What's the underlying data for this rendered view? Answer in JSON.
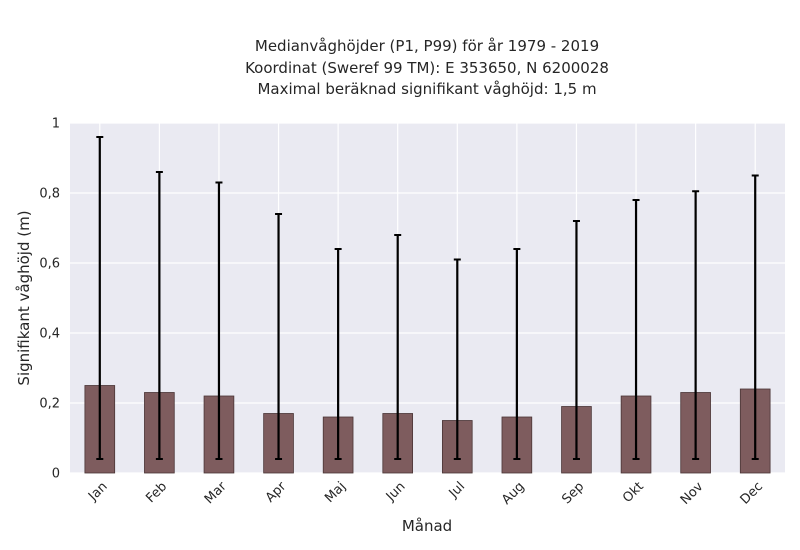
{
  "chart_data": {
    "type": "bar",
    "title_lines": [
      "Medianvåghöjder (P1, P99) för år 1979 - 2019",
      "Koordinat (Sweref 99 TM): E 353650, N 6200028",
      "Maximal beräknad signifikant våghöjd: 1,5 m"
    ],
    "xlabel": "Månad",
    "ylabel": "Signifikant våghöjd (m)",
    "categories": [
      "Jan",
      "Feb",
      "Mar",
      "Apr",
      "Maj",
      "Jun",
      "Jul",
      "Aug",
      "Sep",
      "Okt",
      "Nov",
      "Dec"
    ],
    "series": [
      {
        "values": [
          0.25,
          0.23,
          0.22,
          0.17,
          0.16,
          0.17,
          0.15,
          0.16,
          0.19,
          0.22,
          0.23,
          0.24
        ],
        "error_low": [
          0.04,
          0.04,
          0.04,
          0.04,
          0.04,
          0.04,
          0.04,
          0.04,
          0.04,
          0.04,
          0.04,
          0.04
        ],
        "error_high": [
          0.96,
          0.86,
          0.83,
          0.74,
          0.64,
          0.68,
          0.61,
          0.64,
          0.72,
          0.78,
          0.805,
          0.85
        ]
      }
    ],
    "ylim": [
      0,
      1
    ],
    "yticks": [
      0,
      0.2,
      0.4,
      0.6,
      0.8,
      1
    ],
    "ytick_labels": [
      "0",
      "0,2",
      "0,4",
      "0,6",
      "0,8",
      "1"
    ],
    "grid": true,
    "colors": {
      "bar": "#7e5c5e",
      "bar_edge": "#4a3536",
      "background": "#eaeaf2",
      "grid": "#ffffff",
      "error": "#000000"
    }
  }
}
